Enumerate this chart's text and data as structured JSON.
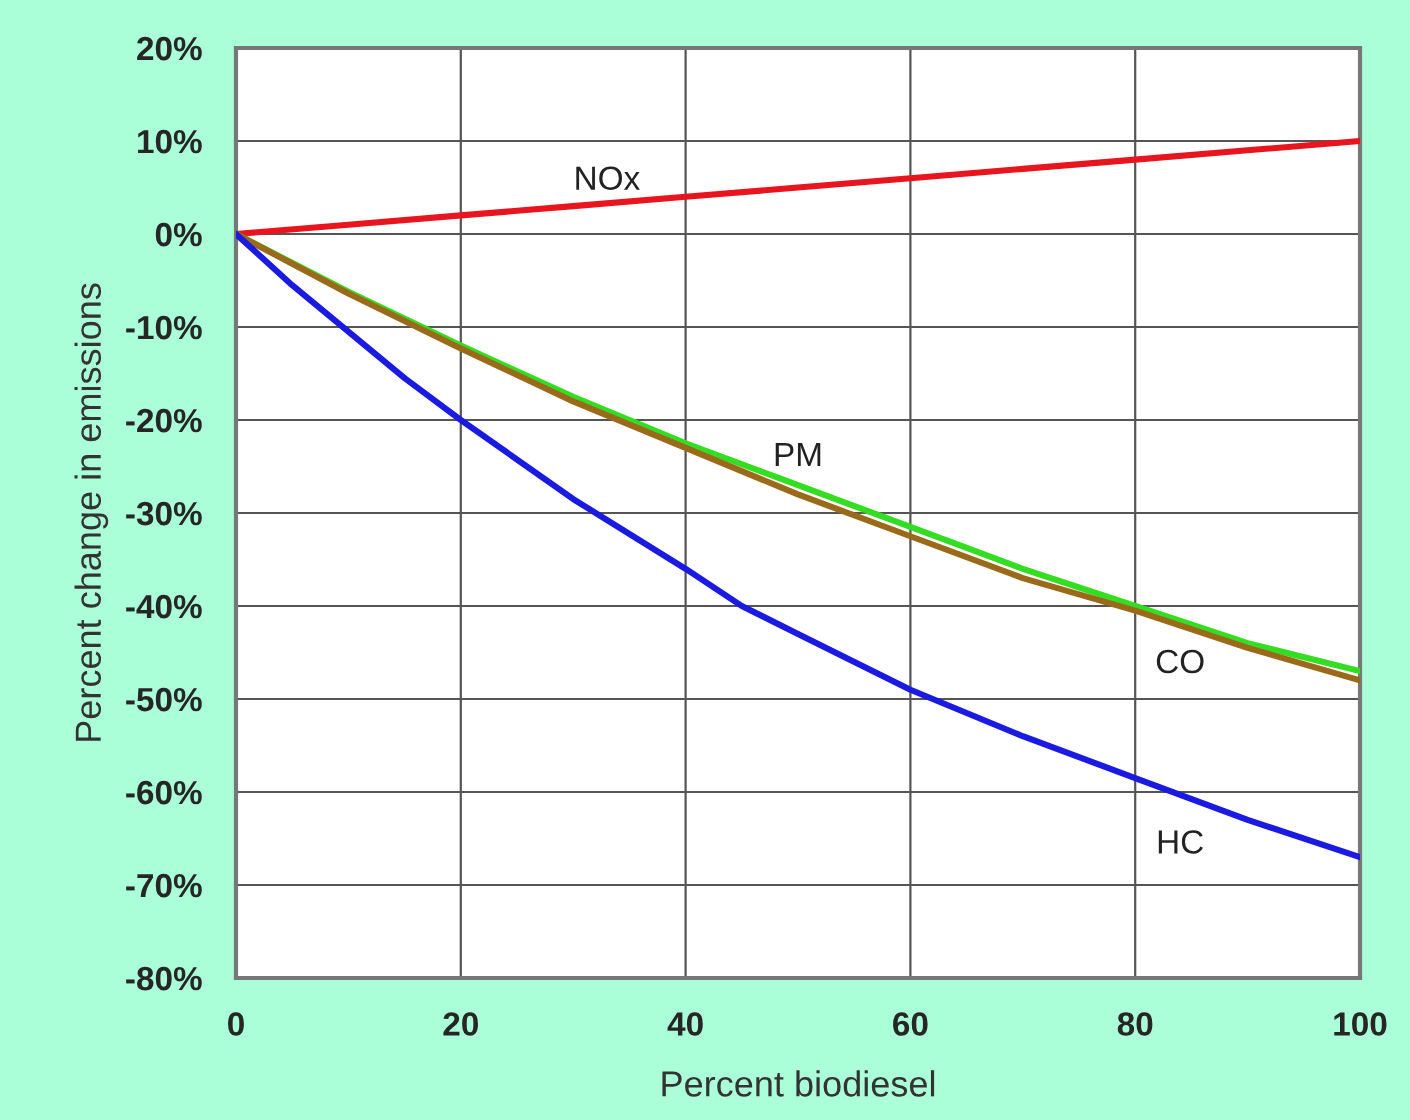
{
  "chart_data": {
    "type": "line",
    "xlabel": "Percent biodiesel",
    "ylabel": "Percent change in emissions",
    "xlim": [
      0,
      100
    ],
    "xticks": [
      0,
      20,
      40,
      60,
      80,
      100
    ],
    "ylim": [
      -80,
      20
    ],
    "yticks": [
      {
        "value": -80,
        "label": "-80%"
      },
      {
        "value": -70,
        "label": "-70%"
      },
      {
        "value": -60,
        "label": "-60%"
      },
      {
        "value": -50,
        "label": "-50%"
      },
      {
        "value": -40,
        "label": "-40%"
      },
      {
        "value": -30,
        "label": "-30%"
      },
      {
        "value": -20,
        "label": "-20%"
      },
      {
        "value": -10,
        "label": "-10%"
      },
      {
        "value": 0,
        "label": "0%"
      },
      {
        "value": 10,
        "label": "10%"
      },
      {
        "value": 20,
        "label": "20%"
      }
    ],
    "grid": true,
    "legend": false,
    "series": [
      {
        "name": "NOx",
        "color": "#e8141e",
        "x": [
          0,
          10,
          20,
          30,
          40,
          50,
          60,
          70,
          80,
          90,
          100
        ],
        "values": [
          0,
          1,
          2,
          3,
          4,
          5,
          6,
          7,
          8,
          9,
          10
        ]
      },
      {
        "name": "PM",
        "color": "#33dd22",
        "x": [
          0,
          10,
          20,
          30,
          40,
          50,
          60,
          70,
          80,
          90,
          100
        ],
        "values": [
          0,
          -6.2,
          -12,
          -17.5,
          -22.5,
          -27,
          -31.5,
          -36,
          -40,
          -44,
          -47
        ]
      },
      {
        "name": "CO",
        "color": "#9a6a1a",
        "x": [
          0,
          10,
          20,
          30,
          40,
          50,
          60,
          70,
          80,
          90,
          100
        ],
        "values": [
          0,
          -6.4,
          -12.3,
          -18,
          -23,
          -28,
          -32.5,
          -37,
          -40.5,
          -44.5,
          -48
        ]
      },
      {
        "name": "HC",
        "color": "#1a1ae0",
        "x": [
          0,
          5,
          10,
          15,
          20,
          30,
          40,
          45,
          50,
          60,
          65,
          70,
          80,
          90,
          100
        ],
        "values": [
          0,
          -5.5,
          -10.5,
          -15.5,
          -20,
          -28.5,
          -36,
          -40,
          -43,
          -49,
          -51.5,
          -54,
          -58.5,
          -63,
          -67
        ]
      }
    ]
  }
}
